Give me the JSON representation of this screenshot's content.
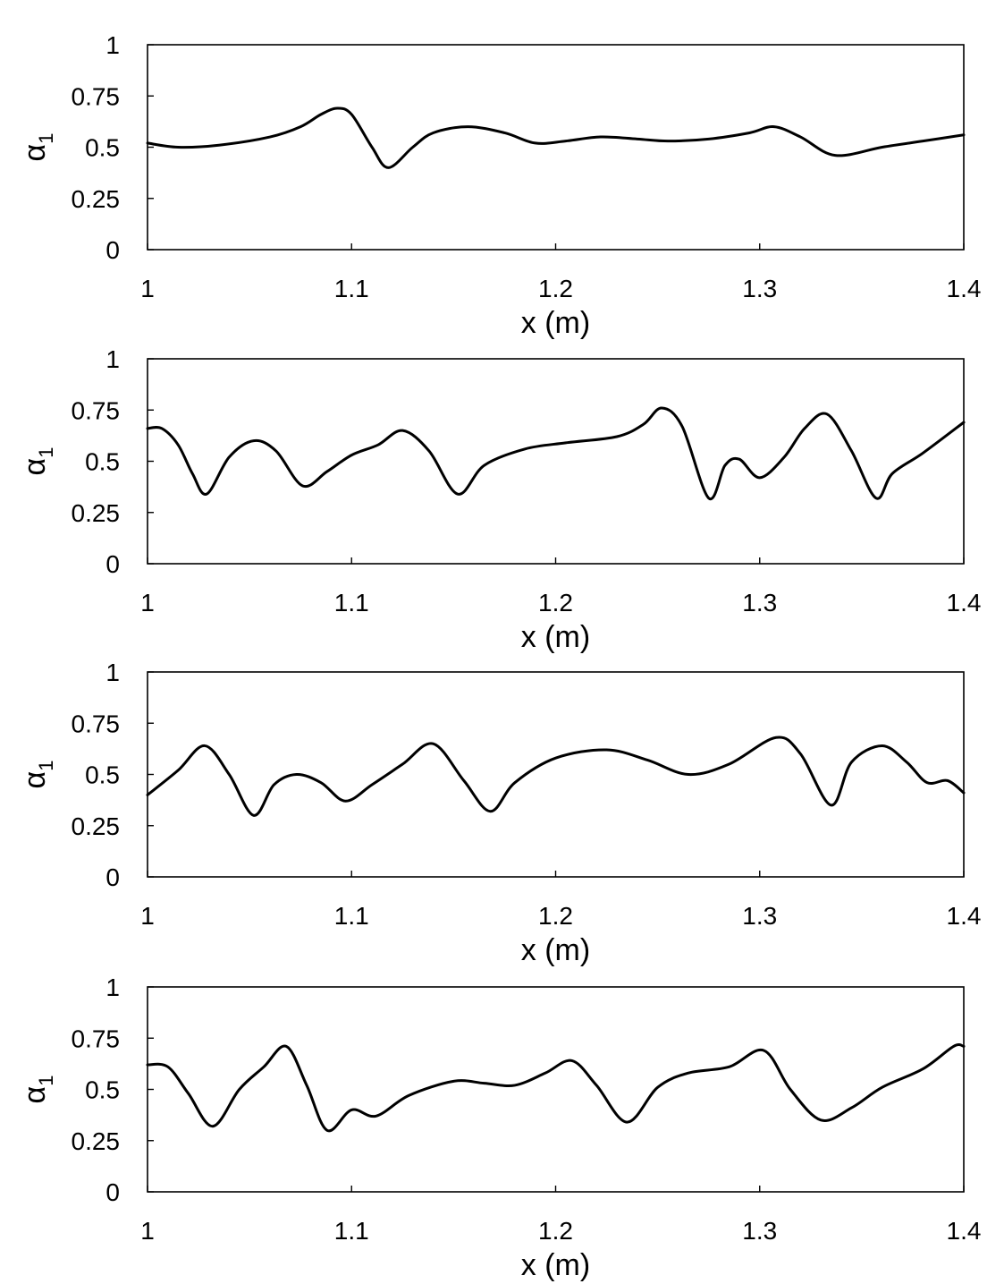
{
  "chart_data": [
    {
      "type": "line",
      "xlabel": "x (m)",
      "ylabel": "α",
      "ylabel_subscript": "1",
      "xlim": [
        1,
        1.4
      ],
      "ylim": [
        0,
        1
      ],
      "xticks": [
        "1",
        "1.1",
        "1.2",
        "1.3",
        "1.4"
      ],
      "yticks": [
        "0",
        "0.25",
        "0.5",
        "0.75",
        "1"
      ],
      "grid": false,
      "series": [
        {
          "color": "#000000",
          "x": [
            1.0,
            1.015,
            1.035,
            1.06,
            1.075,
            1.085,
            1.093,
            1.1,
            1.11,
            1.118,
            1.13,
            1.14,
            1.157,
            1.175,
            1.19,
            1.205,
            1.222,
            1.24,
            1.255,
            1.275,
            1.295,
            1.307,
            1.32,
            1.337,
            1.36,
            1.38,
            1.4
          ],
          "y": [
            0.52,
            0.5,
            0.51,
            0.55,
            0.6,
            0.66,
            0.69,
            0.66,
            0.5,
            0.4,
            0.5,
            0.57,
            0.6,
            0.57,
            0.52,
            0.53,
            0.55,
            0.54,
            0.53,
            0.54,
            0.57,
            0.6,
            0.55,
            0.46,
            0.5,
            0.53,
            0.56
          ]
        }
      ]
    },
    {
      "type": "line",
      "xlabel": "x (m)",
      "ylabel": "α",
      "ylabel_subscript": "1",
      "xlim": [
        1,
        1.4
      ],
      "ylim": [
        0,
        1
      ],
      "xticks": [
        "1",
        "1.1",
        "1.2",
        "1.3",
        "1.4"
      ],
      "yticks": [
        "0",
        "0.25",
        "0.5",
        "0.75",
        "1"
      ],
      "grid": false,
      "series": [
        {
          "color": "#000000",
          "x": [
            1.0,
            1.007,
            1.015,
            1.022,
            1.029,
            1.04,
            1.052,
            1.063,
            1.076,
            1.088,
            1.1,
            1.113,
            1.125,
            1.138,
            1.152,
            1.165,
            1.185,
            1.205,
            1.23,
            1.243,
            1.252,
            1.262,
            1.275,
            1.283,
            1.29,
            1.3,
            1.312,
            1.322,
            1.333,
            1.345,
            1.357,
            1.365,
            1.38,
            1.4
          ],
          "y": [
            0.66,
            0.66,
            0.58,
            0.44,
            0.34,
            0.52,
            0.6,
            0.55,
            0.38,
            0.45,
            0.53,
            0.58,
            0.65,
            0.55,
            0.34,
            0.48,
            0.56,
            0.59,
            0.62,
            0.68,
            0.76,
            0.67,
            0.32,
            0.48,
            0.51,
            0.42,
            0.52,
            0.66,
            0.73,
            0.55,
            0.32,
            0.44,
            0.54,
            0.69
          ]
        }
      ]
    },
    {
      "type": "line",
      "xlabel": "x (m)",
      "ylabel": "α",
      "ylabel_subscript": "1",
      "xlim": [
        1,
        1.4
      ],
      "ylim": [
        0,
        1
      ],
      "xticks": [
        "1",
        "1.1",
        "1.2",
        "1.3",
        "1.4"
      ],
      "yticks": [
        "0",
        "0.25",
        "0.5",
        "0.75",
        "1"
      ],
      "grid": false,
      "series": [
        {
          "color": "#000000",
          "x": [
            1.0,
            1.015,
            1.028,
            1.04,
            1.052,
            1.062,
            1.073,
            1.085,
            1.097,
            1.11,
            1.125,
            1.14,
            1.155,
            1.168,
            1.18,
            1.2,
            1.225,
            1.245,
            1.265,
            1.285,
            1.308,
            1.32,
            1.335,
            1.345,
            1.36,
            1.372,
            1.382,
            1.392,
            1.4
          ],
          "y": [
            0.4,
            0.52,
            0.64,
            0.5,
            0.3,
            0.45,
            0.5,
            0.46,
            0.37,
            0.45,
            0.55,
            0.65,
            0.47,
            0.32,
            0.46,
            0.58,
            0.62,
            0.57,
            0.5,
            0.55,
            0.68,
            0.6,
            0.35,
            0.56,
            0.64,
            0.56,
            0.46,
            0.47,
            0.41
          ]
        }
      ]
    },
    {
      "type": "line",
      "xlabel": "x (m)",
      "ylabel": "α",
      "ylabel_subscript": "1",
      "xlim": [
        1,
        1.4
      ],
      "ylim": [
        0,
        1
      ],
      "xticks": [
        "1",
        "1.1",
        "1.2",
        "1.3",
        "1.4"
      ],
      "yticks": [
        "0",
        "0.25",
        "0.5",
        "0.75",
        "1"
      ],
      "grid": false,
      "series": [
        {
          "color": "#000000",
          "x": [
            1.0,
            1.01,
            1.02,
            1.032,
            1.045,
            1.057,
            1.068,
            1.078,
            1.088,
            1.1,
            1.112,
            1.128,
            1.15,
            1.165,
            1.18,
            1.195,
            1.208,
            1.22,
            1.235,
            1.25,
            1.265,
            1.285,
            1.302,
            1.315,
            1.33,
            1.345,
            1.36,
            1.38,
            1.395,
            1.4
          ],
          "y": [
            0.62,
            0.61,
            0.48,
            0.32,
            0.5,
            0.61,
            0.71,
            0.52,
            0.3,
            0.4,
            0.37,
            0.47,
            0.54,
            0.53,
            0.52,
            0.58,
            0.64,
            0.52,
            0.34,
            0.51,
            0.58,
            0.61,
            0.69,
            0.5,
            0.35,
            0.41,
            0.51,
            0.6,
            0.71,
            0.71
          ]
        }
      ]
    }
  ]
}
